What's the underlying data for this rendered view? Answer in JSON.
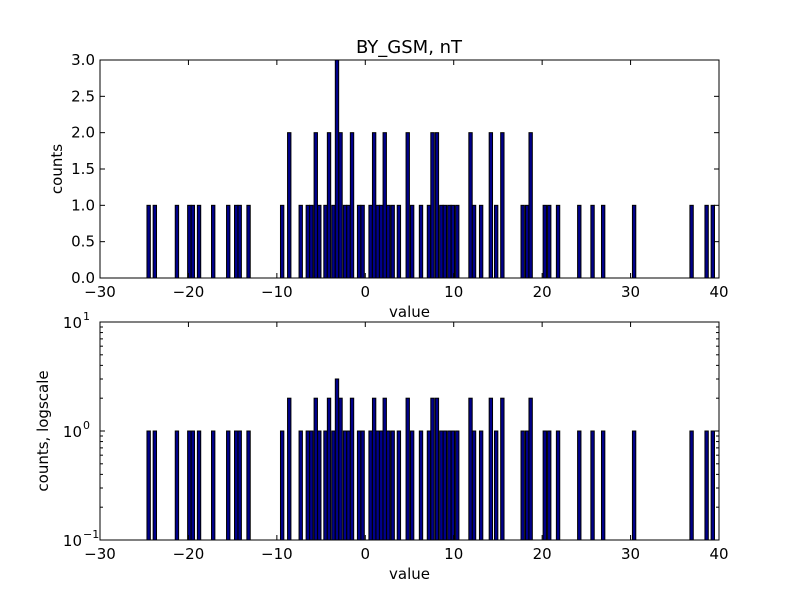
{
  "chart_data": [
    {
      "type": "bar",
      "title": "BY_GSM, nT",
      "xlabel": "value",
      "ylabel": "counts",
      "xlim": [
        -30,
        40
      ],
      "ylim": [
        0,
        3
      ],
      "yscale": "linear",
      "xticks": [
        "−30",
        "−20",
        "−10",
        "0",
        "10",
        "20",
        "30",
        "40"
      ],
      "yticks": [
        "0.0",
        "0.5",
        "1.0",
        "1.5",
        "2.0",
        "2.5",
        "3.0"
      ],
      "bar_color": "#00008b",
      "bars": [
        {
          "x": -24.5,
          "count": 1
        },
        {
          "x": -23.8,
          "count": 1
        },
        {
          "x": -21.3,
          "count": 1
        },
        {
          "x": -19.9,
          "count": 1
        },
        {
          "x": -19.5,
          "count": 1
        },
        {
          "x": -18.8,
          "count": 1
        },
        {
          "x": -17.2,
          "count": 1
        },
        {
          "x": -15.5,
          "count": 1
        },
        {
          "x": -14.6,
          "count": 1
        },
        {
          "x": -14.2,
          "count": 1
        },
        {
          "x": -13.2,
          "count": 1
        },
        {
          "x": -9.4,
          "count": 1
        },
        {
          "x": -8.6,
          "count": 2
        },
        {
          "x": -7.3,
          "count": 1
        },
        {
          "x": -6.5,
          "count": 1
        },
        {
          "x": -6.1,
          "count": 1
        },
        {
          "x": -5.6,
          "count": 2
        },
        {
          "x": -5.2,
          "count": 1
        },
        {
          "x": -4.5,
          "count": 1
        },
        {
          "x": -4.1,
          "count": 2
        },
        {
          "x": -3.6,
          "count": 1
        },
        {
          "x": -3.2,
          "count": 3
        },
        {
          "x": -2.8,
          "count": 2
        },
        {
          "x": -2.3,
          "count": 1
        },
        {
          "x": -1.9,
          "count": 1
        },
        {
          "x": -1.5,
          "count": 2
        },
        {
          "x": -0.7,
          "count": 1
        },
        {
          "x": -0.3,
          "count": 1
        },
        {
          "x": 0.6,
          "count": 1
        },
        {
          "x": 1.0,
          "count": 2
        },
        {
          "x": 1.4,
          "count": 1
        },
        {
          "x": 1.8,
          "count": 1
        },
        {
          "x": 2.2,
          "count": 2
        },
        {
          "x": 2.6,
          "count": 1
        },
        {
          "x": 3.1,
          "count": 1
        },
        {
          "x": 3.8,
          "count": 1
        },
        {
          "x": 4.8,
          "count": 2
        },
        {
          "x": 5.3,
          "count": 1
        },
        {
          "x": 6.3,
          "count": 1
        },
        {
          "x": 7.2,
          "count": 1
        },
        {
          "x": 7.6,
          "count": 2
        },
        {
          "x": 8.1,
          "count": 2
        },
        {
          "x": 8.6,
          "count": 1
        },
        {
          "x": 9.0,
          "count": 1
        },
        {
          "x": 9.5,
          "count": 1
        },
        {
          "x": 9.9,
          "count": 1
        },
        {
          "x": 10.4,
          "count": 1
        },
        {
          "x": 11.9,
          "count": 2
        },
        {
          "x": 12.3,
          "count": 1
        },
        {
          "x": 13.1,
          "count": 1
        },
        {
          "x": 14.2,
          "count": 2
        },
        {
          "x": 14.8,
          "count": 1
        },
        {
          "x": 15.5,
          "count": 2
        },
        {
          "x": 17.8,
          "count": 1
        },
        {
          "x": 18.3,
          "count": 1
        },
        {
          "x": 18.7,
          "count": 2
        },
        {
          "x": 20.3,
          "count": 1
        },
        {
          "x": 20.8,
          "count": 1
        },
        {
          "x": 21.8,
          "count": 1
        },
        {
          "x": 24.2,
          "count": 1
        },
        {
          "x": 25.7,
          "count": 1
        },
        {
          "x": 26.9,
          "count": 1
        },
        {
          "x": 30.4,
          "count": 1
        },
        {
          "x": 36.9,
          "count": 1
        },
        {
          "x": 38.6,
          "count": 1
        },
        {
          "x": 39.3,
          "count": 1
        }
      ]
    },
    {
      "type": "bar",
      "title": "",
      "xlabel": "value",
      "ylabel": "counts, logscale",
      "xlim": [
        -30,
        40
      ],
      "ylim": [
        0.1,
        10
      ],
      "yscale": "log",
      "xticks": [
        "−30",
        "−20",
        "−10",
        "0",
        "10",
        "20",
        "30",
        "40"
      ],
      "yticks": [
        {
          "base": "10",
          "exp": "−1"
        },
        {
          "base": "10",
          "exp": "0"
        },
        {
          "base": "10",
          "exp": "1"
        }
      ],
      "bar_color": "#00008b",
      "same_bins_as_top": true
    }
  ]
}
